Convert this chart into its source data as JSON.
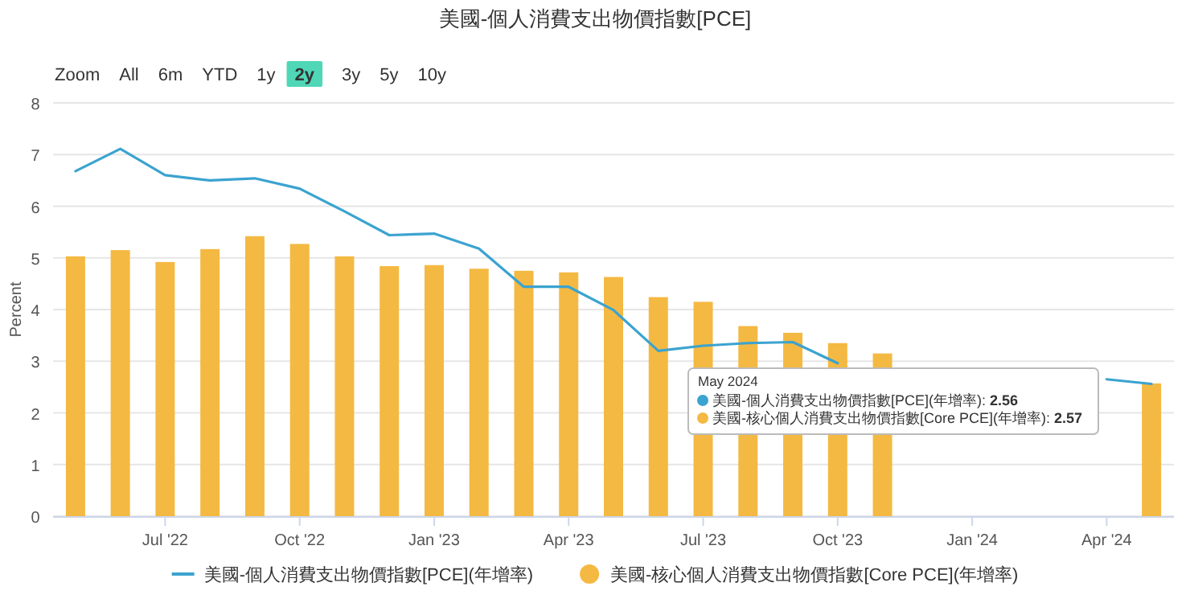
{
  "chart_data": {
    "type": "bar",
    "title": "美國-個人消費支出物價指數[PCE]",
    "ylabel": "Percent",
    "categories": [
      null,
      null,
      "Jul '22",
      null,
      null,
      "Oct '22",
      null,
      null,
      "Jan '23",
      null,
      null,
      "Apr '23",
      null,
      null,
      "Jul '23",
      null,
      null,
      "Oct '23",
      null,
      null,
      "Jan '24",
      null,
      null,
      "Apr '24",
      null
    ],
    "ylim": [
      0,
      8
    ],
    "yticks": [
      0,
      1,
      2,
      3,
      4,
      5,
      6,
      7,
      8
    ],
    "grid": "y",
    "legend": "bottom",
    "series": [
      {
        "name": "美國-個人消費支出物價指數[PCE](年增率)",
        "type": "line",
        "color": "#3ba3d0",
        "values": [
          6.68,
          7.11,
          6.6,
          6.5,
          6.54,
          6.34,
          5.9,
          5.44,
          5.47,
          5.18,
          4.44,
          4.44,
          3.99,
          3.2,
          3.3,
          3.35,
          3.37,
          2.96,
          null,
          null,
          null,
          null,
          null,
          2.65,
          2.56
        ]
      },
      {
        "name": "美國-核心個人消費支出物價指數[Core PCE](年增率)",
        "color": "#f4b942",
        "values": [
          5.03,
          5.15,
          4.92,
          5.17,
          5.42,
          5.27,
          5.03,
          4.84,
          4.86,
          4.79,
          4.75,
          4.72,
          4.63,
          4.24,
          4.15,
          3.68,
          3.55,
          3.35,
          3.15,
          null,
          null,
          null,
          null,
          null,
          2.57
        ]
      }
    ],
    "annotations": [
      "Zoom",
      "All",
      "6m",
      "YTD",
      "1y",
      "**2y**",
      "3y",
      "5y",
      "10y",
      "May 2024",
      "美國-個人消費支出物價指數[PCE](年增率): **2.56**",
      "美國-核心個人消費支出物價指數[Core PCE](年增率): **2.57**"
    ]
  }
}
